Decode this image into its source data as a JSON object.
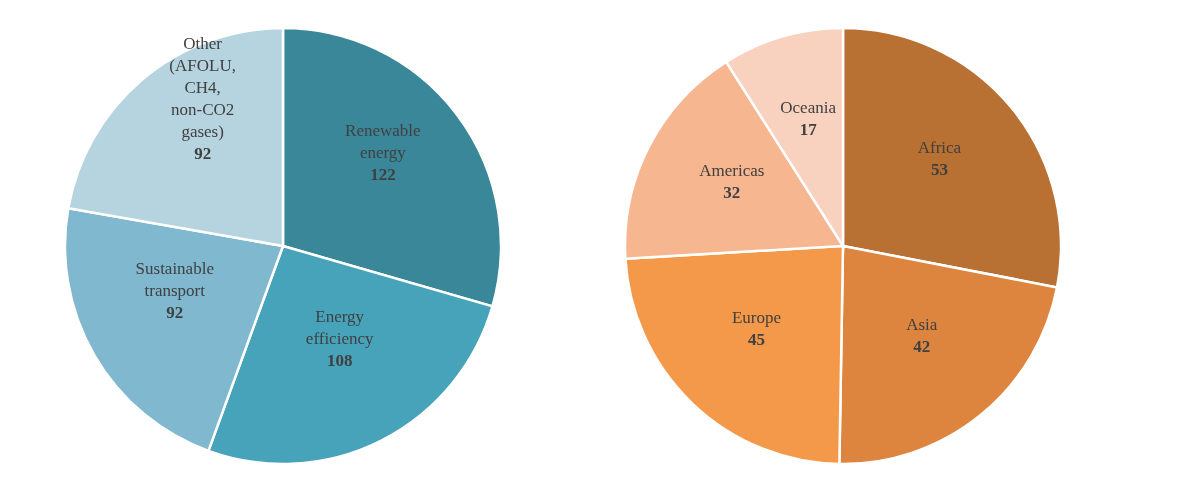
{
  "chart_data": [
    {
      "type": "pie",
      "categories": [
        "Renewable energy",
        "Energy efficiency",
        "Sustainable transport",
        "Other (AFOLU, CH4, non-CO2 gases)"
      ],
      "values": [
        122,
        108,
        92,
        92
      ],
      "colors": [
        "#3a8799",
        "#47a3ba",
        "#7fb8cf",
        "#b6d4df"
      ],
      "data_labels": true,
      "legend": false
    },
    {
      "type": "pie",
      "categories": [
        "Africa",
        "Asia",
        "Europe",
        "Americas",
        "Oceania"
      ],
      "values": [
        53,
        42,
        45,
        32,
        17
      ],
      "colors": [
        "#b87033",
        "#dd843e",
        "#f4984a",
        "#f6b690",
        "#f9d1bf"
      ],
      "data_labels": true,
      "legend": false
    }
  ]
}
